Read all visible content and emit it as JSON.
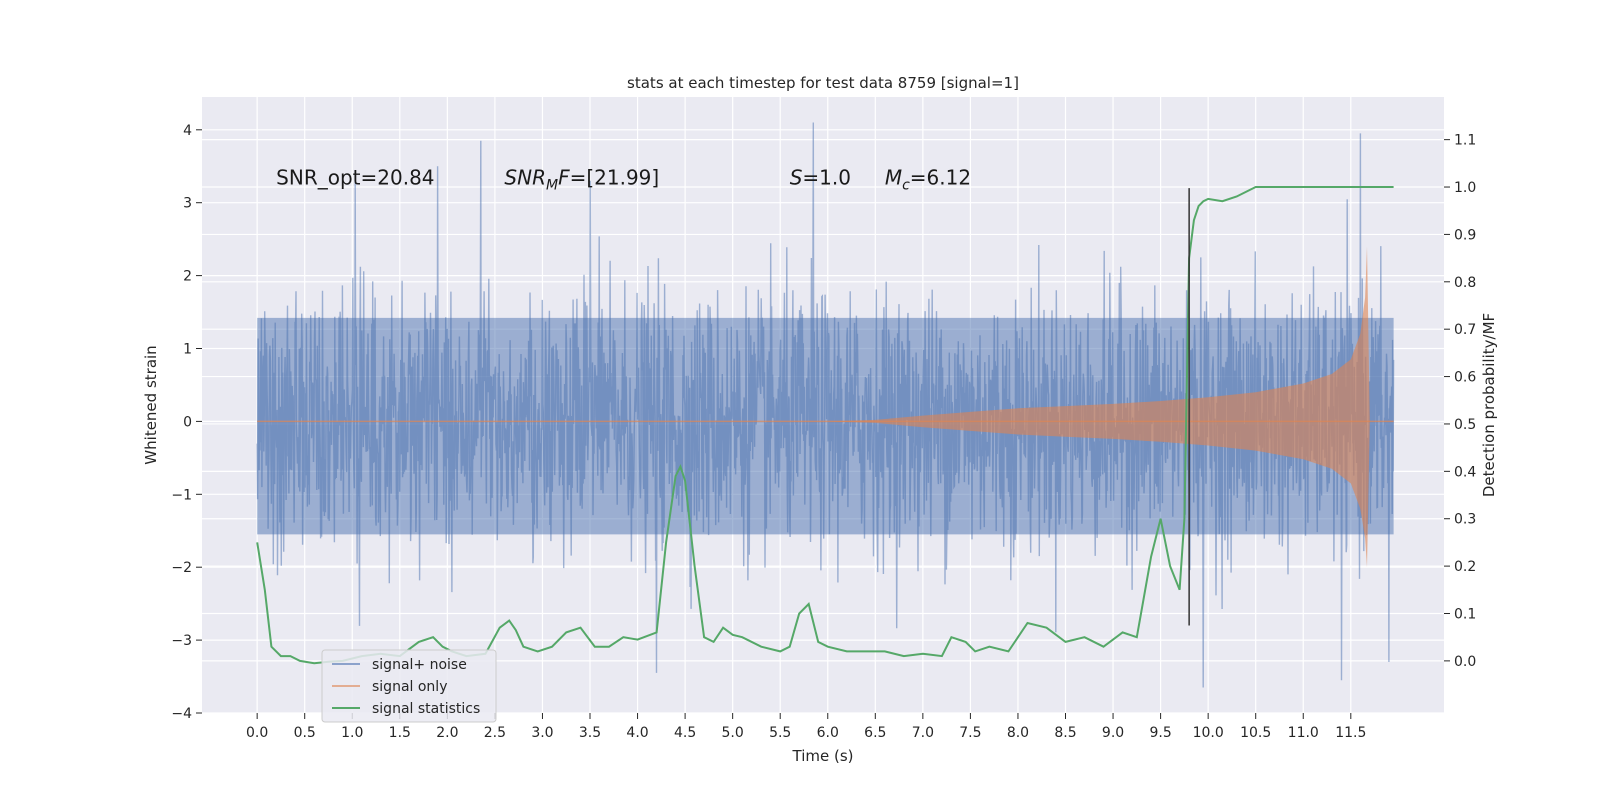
{
  "chart_data": {
    "type": "line",
    "title": "stats at each timestep for test data 8759 [signal=1]",
    "xlabel": "Time (s)",
    "ylabel": "Whitened strain",
    "ylabel_right": "Detection probability/MF",
    "xlim": [
      -0.58,
      12.48
    ],
    "ylim": [
      -4.0,
      4.45
    ],
    "ylim_right": [
      -0.11,
      1.19
    ],
    "x_ticks": [
      0.0,
      0.5,
      1.0,
      1.5,
      2.0,
      2.5,
      3.0,
      3.5,
      4.0,
      4.5,
      5.0,
      5.5,
      6.0,
      6.5,
      7.0,
      7.5,
      8.0,
      8.5,
      9.0,
      9.5,
      10.0,
      10.5,
      11.0,
      11.5
    ],
    "x_tick_labels": [
      "0.0",
      "0.5",
      "1.0",
      "1.5",
      "2.0",
      "2.5",
      "3.0",
      "3.5",
      "4.0",
      "4.5",
      "5.0",
      "5.5",
      "6.0",
      "6.5",
      "7.0",
      "7.5",
      "8.0",
      "8.5",
      "9.0",
      "9.5",
      "10.0",
      "10.5",
      "11.0",
      "11.5"
    ],
    "y_ticks": [
      -4,
      -3,
      -2,
      -1,
      0,
      1,
      2,
      3,
      4
    ],
    "y_tick_labels": [
      "−4",
      "−3",
      "−2",
      "−1",
      "0",
      "1",
      "2",
      "3",
      "4"
    ],
    "y_right_ticks": [
      0.0,
      0.1,
      0.2,
      0.3,
      0.4,
      0.5,
      0.6,
      0.7,
      0.8,
      0.9,
      1.0,
      1.1
    ],
    "y_right_tick_labels": [
      "0.0",
      "0.1",
      "0.2",
      "0.3",
      "0.4",
      "0.5",
      "0.6",
      "0.7",
      "0.8",
      "0.9",
      "1.0",
      "1.1"
    ],
    "grid": true,
    "legend_position": "lower-left",
    "series": [
      {
        "name": "signal+ noise",
        "axis": "left",
        "color": "#4c72b0",
        "description_stats": {
          "x_range": [
            0.0,
            11.95
          ],
          "typical_range": [
            -1.6,
            1.45
          ],
          "extremes": [
            -3.65,
            4.1
          ]
        },
        "peaks": [
          {
            "x": 1.9,
            "y": 3.5
          },
          {
            "x": 2.35,
            "y": 3.85
          },
          {
            "x": 3.5,
            "y": 3.3
          },
          {
            "x": 5.85,
            "y": 4.1
          },
          {
            "x": 11.6,
            "y": 3.95
          },
          {
            "x": 9.95,
            "y": -3.65
          },
          {
            "x": 4.2,
            "y": -3.45
          },
          {
            "x": 11.4,
            "y": -3.55
          },
          {
            "x": 11.9,
            "y": -3.3
          }
        ]
      },
      {
        "name": "signal only",
        "axis": "left",
        "color": "#dd8452",
        "envelope": {
          "x": [
            0.0,
            6.0,
            6.5,
            7.0,
            7.5,
            8.0,
            8.5,
            9.0,
            9.5,
            10.0,
            10.5,
            11.0,
            11.3,
            11.5,
            11.6,
            11.65,
            11.67,
            11.7,
            11.95
          ],
          "upper": [
            0.0,
            0.0,
            0.02,
            0.08,
            0.13,
            0.18,
            0.21,
            0.24,
            0.28,
            0.33,
            0.4,
            0.52,
            0.65,
            0.85,
            1.2,
            1.7,
            2.4,
            0.0,
            0.0
          ],
          "lower": [
            0.0,
            0.0,
            -0.02,
            -0.08,
            -0.13,
            -0.18,
            -0.21,
            -0.24,
            -0.28,
            -0.33,
            -0.4,
            -0.52,
            -0.65,
            -0.85,
            -1.2,
            -1.6,
            -2.0,
            0.0,
            0.0
          ]
        }
      },
      {
        "name": "signal statistics",
        "axis": "right",
        "color": "#55a868",
        "x": [
          0.0,
          0.08,
          0.15,
          0.25,
          0.35,
          0.45,
          0.6,
          0.75,
          0.9,
          1.1,
          1.3,
          1.5,
          1.7,
          1.85,
          1.95,
          2.05,
          2.2,
          2.4,
          2.55,
          2.65,
          2.72,
          2.8,
          2.95,
          3.1,
          3.25,
          3.4,
          3.55,
          3.7,
          3.85,
          4.0,
          4.2,
          4.3,
          4.4,
          4.45,
          4.5,
          4.6,
          4.7,
          4.8,
          4.9,
          5.0,
          5.1,
          5.3,
          5.5,
          5.6,
          5.7,
          5.8,
          5.9,
          6.0,
          6.2,
          6.4,
          6.6,
          6.8,
          7.0,
          7.2,
          7.3,
          7.45,
          7.55,
          7.7,
          7.9,
          8.1,
          8.3,
          8.5,
          8.7,
          8.9,
          9.1,
          9.25,
          9.4,
          9.5,
          9.6,
          9.7,
          9.75,
          9.8,
          9.85,
          9.9,
          9.95,
          10.0,
          10.15,
          10.3,
          10.5,
          10.8,
          11.0,
          11.3,
          11.6,
          11.95
        ],
        "values": [
          0.25,
          0.15,
          0.03,
          0.01,
          0.01,
          0.0,
          -0.005,
          -0.002,
          0.0,
          0.01,
          0.015,
          0.01,
          0.04,
          0.05,
          0.03,
          0.02,
          0.01,
          0.015,
          0.07,
          0.085,
          0.065,
          0.03,
          0.02,
          0.03,
          0.06,
          0.07,
          0.03,
          0.03,
          0.05,
          0.045,
          0.06,
          0.25,
          0.39,
          0.41,
          0.38,
          0.2,
          0.05,
          0.04,
          0.07,
          0.055,
          0.05,
          0.03,
          0.02,
          0.03,
          0.1,
          0.12,
          0.04,
          0.03,
          0.02,
          0.02,
          0.02,
          0.01,
          0.015,
          0.01,
          0.05,
          0.04,
          0.02,
          0.03,
          0.02,
          0.08,
          0.07,
          0.04,
          0.05,
          0.03,
          0.06,
          0.05,
          0.22,
          0.3,
          0.2,
          0.15,
          0.3,
          0.85,
          0.93,
          0.96,
          0.97,
          0.975,
          0.97,
          0.98,
          1.0,
          1.0,
          1.0,
          1.0,
          1.0,
          1.0
        ]
      }
    ],
    "vertical_line": {
      "x": 9.8,
      "ymin": -2.8,
      "ymax": 3.2,
      "color": "#333333"
    },
    "annotations": [
      {
        "text_parts": [
          {
            "t": "SNR_opt=20.84"
          }
        ],
        "x": 0.2,
        "y": 3.25
      },
      {
        "text_parts": [
          {
            "t": "SNR",
            "style": "italic"
          },
          {
            "t": "M",
            "style": "italic-sub"
          },
          {
            "t": "F",
            "style": "italic"
          },
          {
            "t": "=[21.99]"
          }
        ],
        "x": 2.6,
        "y": 3.25
      },
      {
        "text_parts": [
          {
            "t": "S",
            "style": "italic"
          },
          {
            "t": "=1.0"
          }
        ],
        "x": 5.6,
        "y": 3.25
      },
      {
        "text_parts": [
          {
            "t": "M",
            "style": "italic"
          },
          {
            "t": "c",
            "style": "italic-sub"
          },
          {
            "t": "=6.12"
          }
        ],
        "x": 6.6,
        "y": 3.25
      }
    ],
    "legend": [
      {
        "label": "signal+ noise",
        "color": "#4c72b0"
      },
      {
        "label": "signal only",
        "color": "#dd8452"
      },
      {
        "label": "signal statistics",
        "color": "#55a868"
      }
    ]
  }
}
